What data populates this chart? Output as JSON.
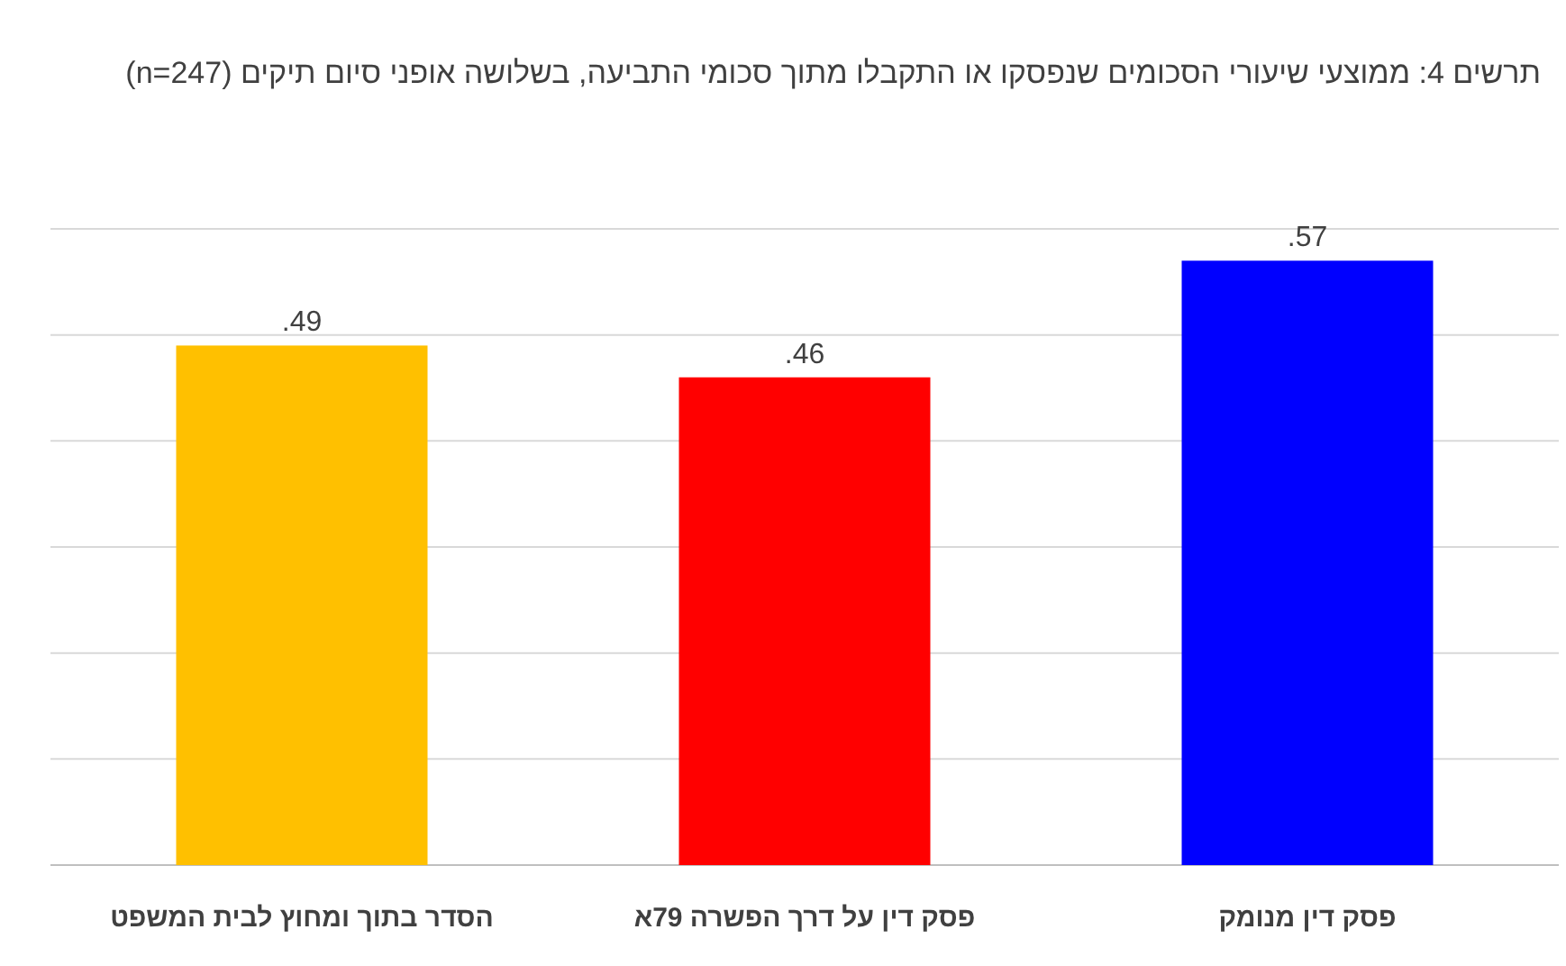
{
  "chart_data": {
    "type": "bar",
    "title": "תרשים 4: ממוצעי שיעורי הסכומים שנפסקו או התקבלו מתוך סכומי התביעה, בשלושה אופני סיום תיקים (n=247)",
    "categories": [
      "הסדר בתוך ומחוץ לבית המשפט",
      "פסק דין על דרך הפשרה 79א",
      "פסק דין מנומק"
    ],
    "values": [
      0.49,
      0.46,
      0.57
    ],
    "colors": [
      "#ffc000",
      "#ff0000",
      "#0000ff"
    ],
    "value_labels": [
      ".49",
      ".46",
      ".57"
    ],
    "ylim": [
      0,
      0.6
    ],
    "yticks": [
      {
        "value": 0,
        "label": null
      },
      {
        "value": 0.1,
        "label": null
      },
      {
        "value": 0.2,
        "label": null
      },
      {
        "value": 0.3,
        "label": null
      },
      {
        "value": 0.4,
        "label": null
      },
      {
        "value": 0.5,
        "label": null
      },
      {
        "value": 0.6,
        "label": null
      }
    ],
    "tick_labels": "x",
    "grid": "y"
  }
}
